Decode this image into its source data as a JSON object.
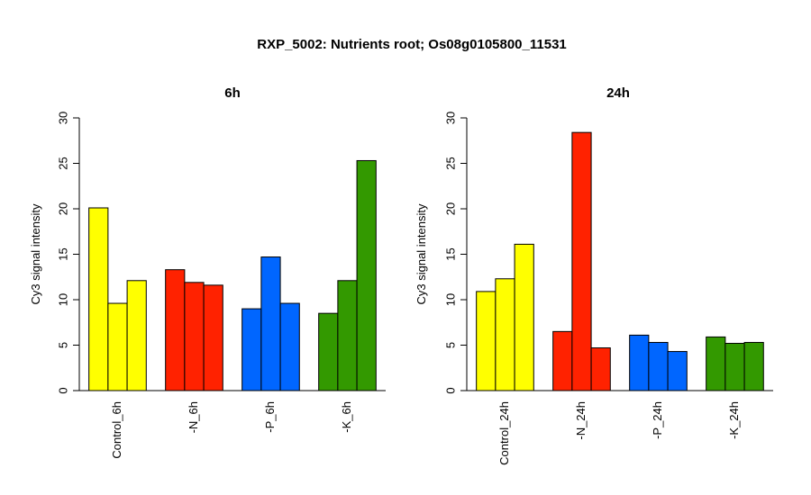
{
  "chart_data": [
    {
      "type": "bar",
      "title": "6h",
      "ylabel": "Cy3 signal intensity",
      "ylim": [
        0,
        30
      ],
      "yticks": [
        0,
        5,
        10,
        15,
        20,
        25,
        30
      ],
      "categories": [
        "Control_6h",
        "-N_6h",
        "-P_6h",
        "-K_6h"
      ],
      "group_colors": [
        "#ffff00",
        "#ff2200",
        "#0066ff",
        "#339900"
      ],
      "values": [
        [
          20.1,
          9.6,
          12.1
        ],
        [
          13.3,
          11.9,
          11.6
        ],
        [
          9.0,
          14.7,
          9.6
        ],
        [
          8.5,
          12.1,
          25.3
        ]
      ]
    },
    {
      "type": "bar",
      "title": "24h",
      "ylabel": "Cy3 signal intensity",
      "ylim": [
        0,
        30
      ],
      "yticks": [
        0,
        5,
        10,
        15,
        20,
        25,
        30
      ],
      "categories": [
        "Control_24h",
        "-N_24h",
        "-P_24h",
        "-K_24h"
      ],
      "group_colors": [
        "#ffff00",
        "#ff2200",
        "#0066ff",
        "#339900"
      ],
      "values": [
        [
          10.9,
          12.3,
          16.1
        ],
        [
          6.5,
          28.4,
          4.7
        ],
        [
          6.1,
          5.3,
          4.3
        ],
        [
          5.9,
          5.2,
          5.3
        ]
      ]
    }
  ],
  "main_title": "RXP_5002: Nutrients root; Os08g0105800_11531"
}
